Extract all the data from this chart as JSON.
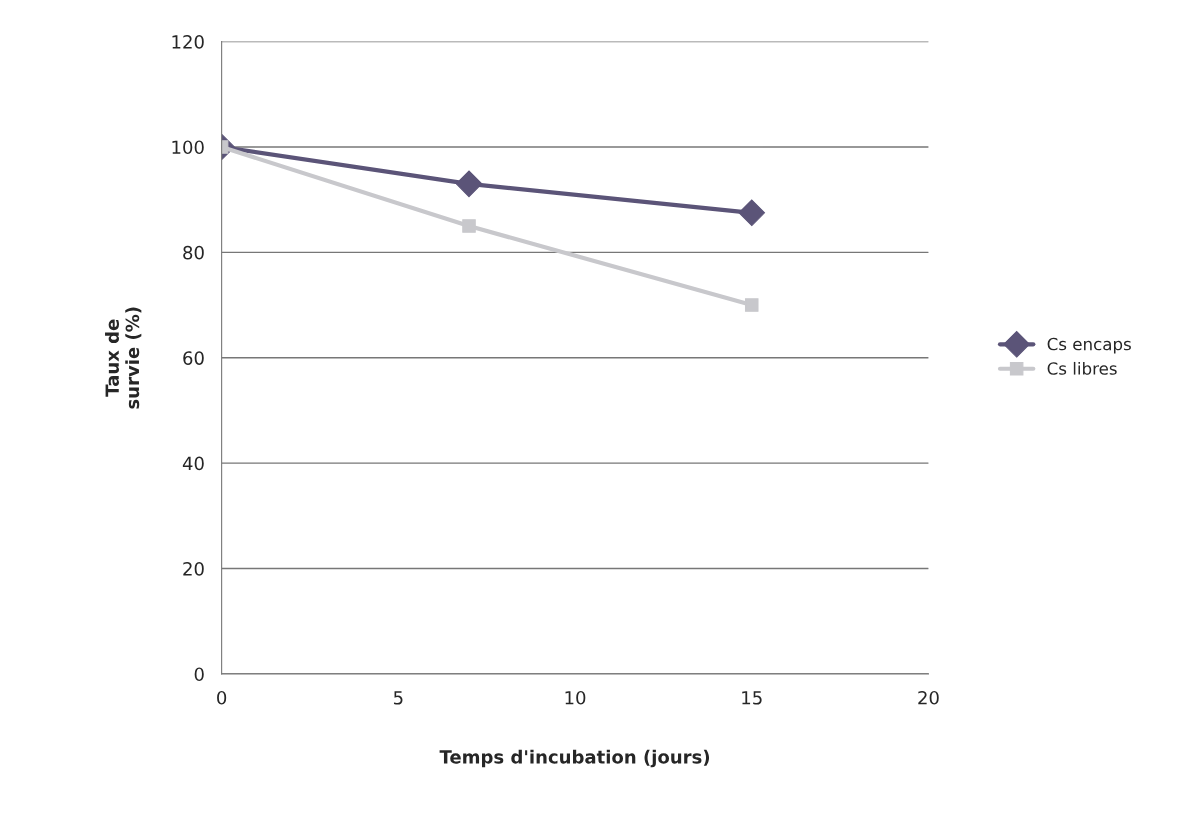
{
  "chart_data": {
    "type": "line",
    "xlabel": "Temps d'incubation (jours)",
    "ylabel": "Taux de\nsurvie (%)",
    "x": [
      0,
      7,
      15
    ],
    "series": [
      {
        "name": "Cs encaps",
        "color": "#5b5478",
        "marker": "diamond",
        "values": [
          100,
          93,
          87.5
        ]
      },
      {
        "name": "Cs libres",
        "color": "#c8c8cc",
        "marker": "square",
        "values": [
          100,
          85,
          70
        ]
      }
    ],
    "xlim": [
      0,
      20
    ],
    "xticks": [
      0,
      5,
      10,
      15,
      20
    ],
    "ylim": [
      0,
      120
    ],
    "yticks": [
      0,
      20,
      40,
      60,
      80,
      100,
      120
    ],
    "grid": "y",
    "legend": "right",
    "line_style": "solid"
  }
}
